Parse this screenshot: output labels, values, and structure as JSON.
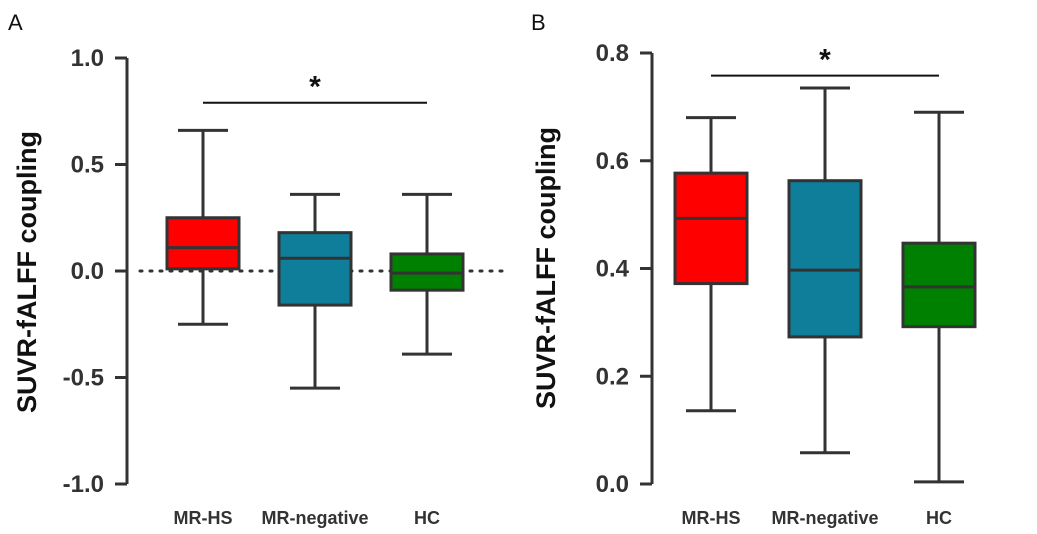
{
  "chart_data": [
    {
      "panel": "A",
      "type": "box",
      "ylabel": "SUVR-fALFF coupling",
      "ylim": [
        -1.0,
        1.0
      ],
      "yticks": [
        1.0,
        0.5,
        0.0,
        -0.5,
        -1.0
      ],
      "ytick_labels": [
        "1.0",
        "0.5",
        "0.0",
        "-0.5",
        "-1.0"
      ],
      "zero_reference_line": "dotted",
      "categories": [
        "MR-HS",
        "MR-negative",
        "HC"
      ],
      "boxes": [
        {
          "name": "MR-HS",
          "min": -0.25,
          "q1": 0.01,
          "median": 0.11,
          "q3": 0.25,
          "max": 0.66,
          "color": "#ff0000"
        },
        {
          "name": "MR-negative",
          "min": -0.55,
          "q1": -0.16,
          "median": 0.06,
          "q3": 0.18,
          "max": 0.36,
          "color": "#0e7e9a"
        },
        {
          "name": "HC",
          "min": -0.39,
          "q1": -0.09,
          "median": -0.01,
          "q3": 0.08,
          "max": 0.36,
          "color": "#008000"
        }
      ],
      "significance": {
        "from": "MR-HS",
        "to": "HC",
        "y": 0.79,
        "label": "*"
      }
    },
    {
      "panel": "B",
      "type": "box",
      "ylabel": "SUVR-fALFF coupling",
      "ylim": [
        0.0,
        0.8
      ],
      "yticks": [
        0.8,
        0.6,
        0.4,
        0.2,
        0.0
      ],
      "ytick_labels": [
        "0.8",
        "0.6",
        "0.4",
        "0.2",
        "0.0"
      ],
      "categories": [
        "MR-HS",
        "MR-negative",
        "HC"
      ],
      "boxes": [
        {
          "name": "MR-HS",
          "min": 0.136,
          "q1": 0.372,
          "median": 0.493,
          "q3": 0.577,
          "max": 0.68,
          "color": "#ff0000"
        },
        {
          "name": "MR-negative",
          "min": 0.058,
          "q1": 0.273,
          "median": 0.397,
          "q3": 0.563,
          "max": 0.735,
          "color": "#0e7e9a"
        },
        {
          "name": "HC",
          "min": 0.004,
          "q1": 0.292,
          "median": 0.366,
          "q3": 0.447,
          "max": 0.69,
          "color": "#008000"
        }
      ],
      "significance": {
        "from": "MR-HS",
        "to": "HC",
        "y": 0.758,
        "label": "*"
      }
    }
  ]
}
